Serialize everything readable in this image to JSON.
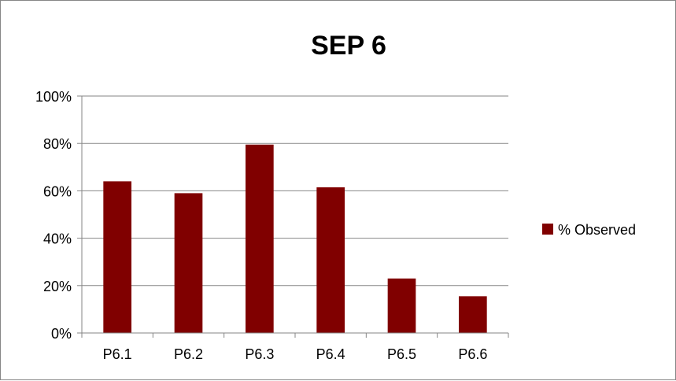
{
  "chart_data": {
    "type": "bar",
    "title": "SEP 6",
    "categories": [
      "P6.1",
      "P6.2",
      "P6.3",
      "P6.4",
      "P6.5",
      "P6.6"
    ],
    "series": [
      {
        "name": "% Observed",
        "values": [
          64,
          59,
          79.5,
          61.5,
          23,
          15.5
        ],
        "color": "#800000"
      }
    ],
    "y_tick_labels": [
      "0%",
      "20%",
      "40%",
      "60%",
      "80%",
      "100%"
    ],
    "ylim": [
      0,
      100
    ],
    "grid": true,
    "legend_position": "right"
  }
}
